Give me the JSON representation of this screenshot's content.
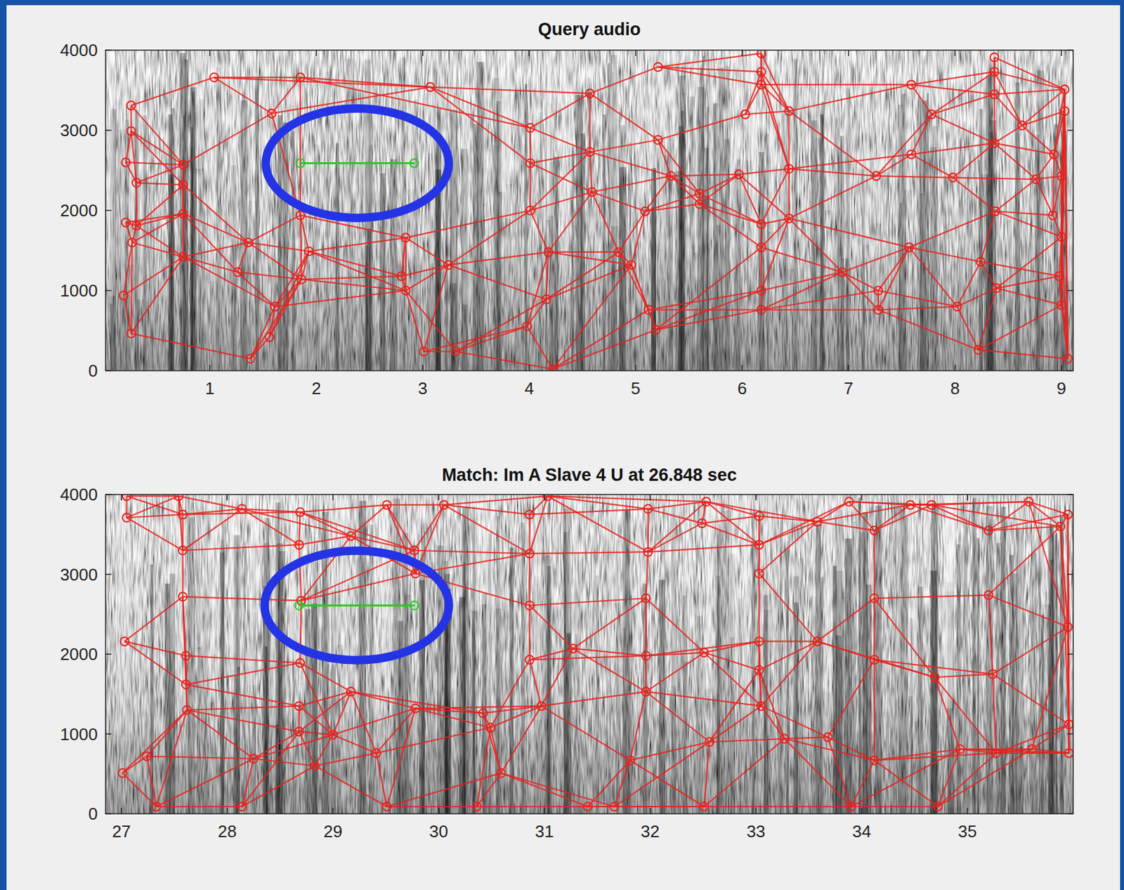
{
  "chart_data": [
    {
      "type": "scatter",
      "title": "Query audio",
      "xlim": [
        0.02,
        9.11
      ],
      "xticks": [
        1,
        2,
        3,
        4,
        5,
        6,
        7,
        8,
        9
      ],
      "ylim": [
        0,
        4000
      ],
      "yticks": [
        0,
        1000,
        2000,
        3000,
        4000
      ],
      "series": [
        {
          "color": "#e8211c",
          "marker": "circle",
          "line_style": "pairs",
          "x": [
            0.26,
            0.26,
            0.21,
            0.31,
            0.21,
            0.31,
            0.27,
            0.19,
            0.26,
            1.04,
            1.58,
            1.85,
            0.75,
            0.75,
            0.75,
            0.75,
            1.36,
            1.26,
            1.38,
            1.56,
            1.61,
            1.85,
            1.93,
            1.86,
            3.07,
            2.84,
            2.8,
            2.84,
            3.01,
            3.31,
            3.24,
            4.01,
            4.01,
            4.01,
            4.18,
            3.98,
            4.22,
            4.16,
            4.57,
            4.57,
            4.59,
            4.84,
            4.96,
            5.09,
            5.12,
            5.19,
            5.21,
            5.21,
            5.33,
            5.6,
            5.6,
            6.03,
            5.97,
            6.18,
            6.18,
            6.18,
            6.18,
            6.18,
            6.18,
            6.18,
            6.44,
            6.44,
            6.44,
            6.94,
            7.26,
            7.28,
            7.28,
            7.59,
            7.59,
            7.57,
            7.78,
            7.98,
            8.02,
            8.22,
            8.37,
            8.37,
            8.37,
            8.37,
            8.38,
            8.24,
            8.39,
            8.63,
            8.76,
            8.93,
            9.03,
            9.03,
            9.0,
            8.92,
            9.0,
            8.98,
            9.0,
            9.06
          ],
          "values": [
            3310,
            2990,
            2600,
            2345,
            1850,
            1810,
            1600,
            940,
            465,
            3660,
            3210,
            3660,
            2570,
            2320,
            1960,
            1420,
            1600,
            1230,
            150,
            420,
            800,
            1940,
            1490,
            1140,
            3540,
            1660,
            1180,
            1000,
            240,
            240,
            1320,
            3030,
            2590,
            2000,
            1480,
            555,
            20,
            890,
            3460,
            2730,
            2230,
            1480,
            1320,
            1990,
            760,
            510,
            3790,
            2880,
            2430,
            2210,
            2080,
            3200,
            2450,
            3960,
            3730,
            3570,
            1830,
            1540,
            1000,
            760,
            3240,
            2520,
            1900,
            1230,
            2430,
            1000,
            760,
            3570,
            2700,
            1540,
            3200,
            2410,
            800,
            260,
            3910,
            3730,
            3450,
            2840,
            1990,
            1360,
            1030,
            3060,
            2390,
            2700,
            3510,
            3240,
            2430,
            1940,
            1670,
            1180,
            820,
            150
          ]
        },
        {
          "color": "#22cc22",
          "marker": "circle",
          "line_style": "solid",
          "x": [
            1.85,
            2.92
          ],
          "values": [
            2590,
            2590
          ]
        }
      ]
    },
    {
      "type": "scatter",
      "title": "Match: Im A Slave 4 U at 26.848 sec",
      "xlim": [
        26.85,
        36.0
      ],
      "xticks": [
        27,
        28,
        29,
        30,
        31,
        32,
        33,
        34,
        35
      ],
      "ylim": [
        0,
        4000
      ],
      "yticks": [
        0,
        1000,
        2000,
        3000,
        4000
      ],
      "series": [
        {
          "color": "#e8211c",
          "marker": "circle",
          "line_style": "pairs",
          "x": [
            27.05,
            27.05,
            27.54,
            27.58,
            27.58,
            27.58,
            27.03,
            27.61,
            27.61,
            27.62,
            27.24,
            27.01,
            27.33,
            28.14,
            28.14,
            28.25,
            28.69,
            28.68,
            28.7,
            28.69,
            28.68,
            28.68,
            28.83,
            29.0,
            29.17,
            29.17,
            29.41,
            29.51,
            29.51,
            29.77,
            29.78,
            29.78,
            30.05,
            30.36,
            30.49,
            30.59,
            30.42,
            30.86,
            30.86,
            30.86,
            30.86,
            31.03,
            30.97,
            31.27,
            31.41,
            31.66,
            31.81,
            31.98,
            31.98,
            31.96,
            31.96,
            31.96,
            32.49,
            32.53,
            32.51,
            32.51,
            32.56,
            33.03,
            33.03,
            33.03,
            33.03,
            33.03,
            33.05,
            33.27,
            33.58,
            33.58,
            33.68,
            33.88,
            33.9,
            34.12,
            34.12,
            34.12,
            34.12,
            34.46,
            34.66,
            34.69,
            34.72,
            34.93,
            35.2,
            35.2,
            35.24,
            35.27,
            35.58,
            35.61,
            35.88,
            35.95,
            35.95,
            35.96,
            35.96
          ],
          "values": [
            3980,
            3710,
            3980,
            3750,
            3300,
            2720,
            2160,
            1980,
            1620,
            1300,
            720,
            510,
            90,
            90,
            3820,
            690,
            3780,
            3370,
            2670,
            1890,
            1350,
            1030,
            600,
            990,
            1530,
            3480,
            760,
            3870,
            90,
            3300,
            1320,
            3010,
            3870,
            90,
            1080,
            510,
            1260,
            3750,
            3260,
            2610,
            1930,
            3980,
            1350,
            2070,
            90,
            90,
            670,
            3820,
            3280,
            2700,
            1980,
            1530,
            3640,
            3910,
            2020,
            90,
            900,
            3730,
            3370,
            3010,
            2160,
            1800,
            1350,
            940,
            3660,
            2160,
            960,
            3910,
            90,
            3550,
            2700,
            1930,
            670,
            3870,
            3870,
            1710,
            90,
            810,
            3550,
            2740,
            1750,
            760,
            3910,
            810,
            3600,
            3750,
            2340,
            1120,
            760
          ]
        },
        {
          "color": "#22cc22",
          "marker": "circle",
          "line_style": "solid",
          "x": [
            28.68,
            29.77
          ],
          "values": [
            2610,
            2610
          ]
        }
      ]
    }
  ]
}
